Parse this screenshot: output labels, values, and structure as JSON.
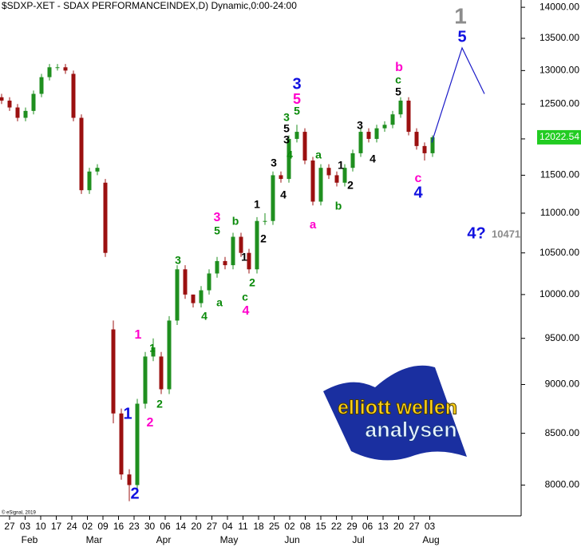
{
  "chart_data": {
    "type": "candlestick",
    "title": "$SDXP-XET - SDAX PERFORMANCEINDEX,D) Dynamic,0:00-24:00",
    "copyright": "© eSignal, 2019",
    "log_scale": true,
    "up_color": "#1f8f1f",
    "down_color": "#9b1010",
    "open": [
      12600,
      12550,
      12450,
      12300,
      12400,
      12650,
      12900,
      13050,
      13050,
      12950,
      12300,
      11300,
      11550,
      11400,
      9600,
      8700,
      8100,
      8000,
      8800,
      9300,
      9300,
      8950,
      9700,
      10300,
      10000,
      9900,
      10050,
      10250,
      10400,
      10350,
      10700,
      10500,
      10300,
      10900,
      10900,
      11500,
      11450,
      12000,
      12100,
      11700,
      11150,
      11600,
      11500,
      11400,
      11600,
      11800,
      12100,
      12000,
      12150,
      12200,
      12350,
      12550,
      12100,
      11900,
      11800
    ],
    "high": [
      12650,
      12600,
      12500,
      12450,
      12700,
      12950,
      13100,
      13100,
      13100,
      13000,
      12350,
      11600,
      11650,
      11450,
      9700,
      8750,
      8150,
      8850,
      9350,
      9500,
      9350,
      9750,
      10350,
      10350,
      10000,
      10100,
      10300,
      10450,
      10450,
      10750,
      10750,
      10550,
      10950,
      11000,
      11550,
      11550,
      12050,
      12200,
      12150,
      11750,
      11650,
      11650,
      11550,
      11650,
      11850,
      12150,
      12150,
      12200,
      12250,
      12400,
      12600,
      12600,
      12150,
      11950,
      12050
    ],
    "low": [
      12500,
      12400,
      12250,
      12250,
      12350,
      12600,
      12850,
      13000,
      12950,
      12250,
      11250,
      11250,
      11500,
      10450,
      8600,
      8050,
      7850,
      7950,
      8750,
      9250,
      8900,
      8900,
      9650,
      9950,
      9850,
      9850,
      10000,
      10200,
      10300,
      10300,
      10450,
      10250,
      10250,
      10850,
      10850,
      11400,
      11400,
      11950,
      11650,
      11100,
      11100,
      11450,
      11350,
      11350,
      11550,
      11750,
      11950,
      11950,
      12100,
      12150,
      12300,
      12050,
      11850,
      11700,
      11750
    ],
    "close": [
      12550,
      12450,
      12300,
      12400,
      12650,
      12900,
      13050,
      13050,
      13000,
      12300,
      11300,
      11550,
      11600,
      10500,
      8700,
      8100,
      8000,
      8800,
      9300,
      9400,
      8950,
      9700,
      10300,
      10000,
      9900,
      10050,
      10250,
      10400,
      10350,
      10700,
      10500,
      10300,
      10900,
      10900,
      11500,
      11450,
      12000,
      12100,
      11700,
      11150,
      11600,
      11500,
      11400,
      11600,
      11800,
      12100,
      12000,
      12150,
      12200,
      12350,
      12550,
      12100,
      11900,
      11800,
      12022.54
    ],
    "last_price": 12022.54,
    "projection": {
      "color": "#1a1ac8",
      "values": [
        11950,
        13350,
        12650
      ]
    },
    "x_labels": [
      "27",
      "03",
      "10",
      "17",
      "24",
      "02",
      "09",
      "16",
      "23",
      "30",
      "06",
      "14",
      "20",
      "27",
      "04",
      "11",
      "18",
      "25",
      "02",
      "08",
      "15",
      "22",
      "29",
      "06",
      "13",
      "20",
      "27",
      "03"
    ],
    "month_labels": [
      "Feb",
      "Mar",
      "Apr",
      "May",
      "Jun",
      "Jul",
      "Aug"
    ],
    "ylim": [
      7760,
      14120
    ],
    "yticks": [
      {
        "value": 8000,
        "label": "8000.00"
      },
      {
        "value": 8500,
        "label": "8500.00"
      },
      {
        "value": 9000,
        "label": "9000.00"
      },
      {
        "value": 9500,
        "label": "9500.00"
      },
      {
        "value": 10000,
        "label": "10000.00"
      },
      {
        "value": 10500,
        "label": "10500.00"
      },
      {
        "value": 11000,
        "label": "11000.00"
      },
      {
        "value": 11500,
        "label": "11500.00"
      },
      {
        "value": 12000,
        "label": "12000.00"
      },
      {
        "value": 12500,
        "label": "12500.00"
      },
      {
        "value": 13000,
        "label": "13000.00"
      },
      {
        "value": 13500,
        "label": "13500.00"
      },
      {
        "value": 14000,
        "label": "14000.00"
      }
    ],
    "annotations": [
      {
        "text": "1",
        "color": "#8c8c8c"
      },
      {
        "text": "5",
        "color": "#1010e0"
      },
      {
        "text": "b",
        "color": "#ff00cc"
      },
      {
        "text": "c",
        "color": "#0a8a0a"
      },
      {
        "text": "5",
        "color": "#000000"
      },
      {
        "text": "3",
        "color": "#1010e0"
      },
      {
        "text": "5",
        "color": "#ff00cc"
      },
      {
        "text": "5",
        "color": "#0a8a0a"
      },
      {
        "text": "3",
        "color": "#0a8a0a"
      },
      {
        "text": "5",
        "color": "#000000"
      },
      {
        "text": "3",
        "color": "#000000"
      },
      {
        "text": "4",
        "color": "#0a8a0a"
      },
      {
        "text": "a",
        "color": "#0a8a0a"
      },
      {
        "text": "3",
        "color": "#000000"
      },
      {
        "text": "4",
        "color": "#000000"
      },
      {
        "text": "1",
        "color": "#000000"
      },
      {
        "text": "2",
        "color": "#000000"
      },
      {
        "text": "b",
        "color": "#0a8a0a"
      },
      {
        "text": "c",
        "color": "#ff00cc"
      },
      {
        "text": "4",
        "color": "#1010e0"
      },
      {
        "text": "3",
        "color": "#000000"
      },
      {
        "text": "4",
        "color": "#000000"
      },
      {
        "text": "a",
        "color": "#ff00cc"
      },
      {
        "text": "1",
        "color": "#000000"
      },
      {
        "text": "2",
        "color": "#000000"
      },
      {
        "text": "3",
        "color": "#ff00cc"
      },
      {
        "text": "5",
        "color": "#0a8a0a"
      },
      {
        "text": "b",
        "color": "#0a8a0a"
      },
      {
        "text": "1",
        "color": "#000000"
      },
      {
        "text": "2",
        "color": "#0a8a0a"
      },
      {
        "text": "c",
        "color": "#0a8a0a"
      },
      {
        "text": "4",
        "color": "#ff00cc"
      },
      {
        "text": "a",
        "color": "#0a8a0a"
      },
      {
        "text": "3",
        "color": "#0a8a0a"
      },
      {
        "text": "4",
        "color": "#0a8a0a"
      },
      {
        "text": "1",
        "color": "#ff00cc"
      },
      {
        "text": "1",
        "color": "#0a8a0a"
      },
      {
        "text": "2",
        "color": "#ff00cc"
      },
      {
        "text": "2",
        "color": "#0a8a0a"
      },
      {
        "text": "1",
        "color": "#1010e0"
      },
      {
        "text": "2",
        "color": "#1010e0"
      },
      {
        "text": "4?",
        "color": "#1010e0"
      }
    ],
    "target_value": 10471,
    "logo": {
      "line1": "elliott wellen",
      "line2": "analysen"
    }
  }
}
